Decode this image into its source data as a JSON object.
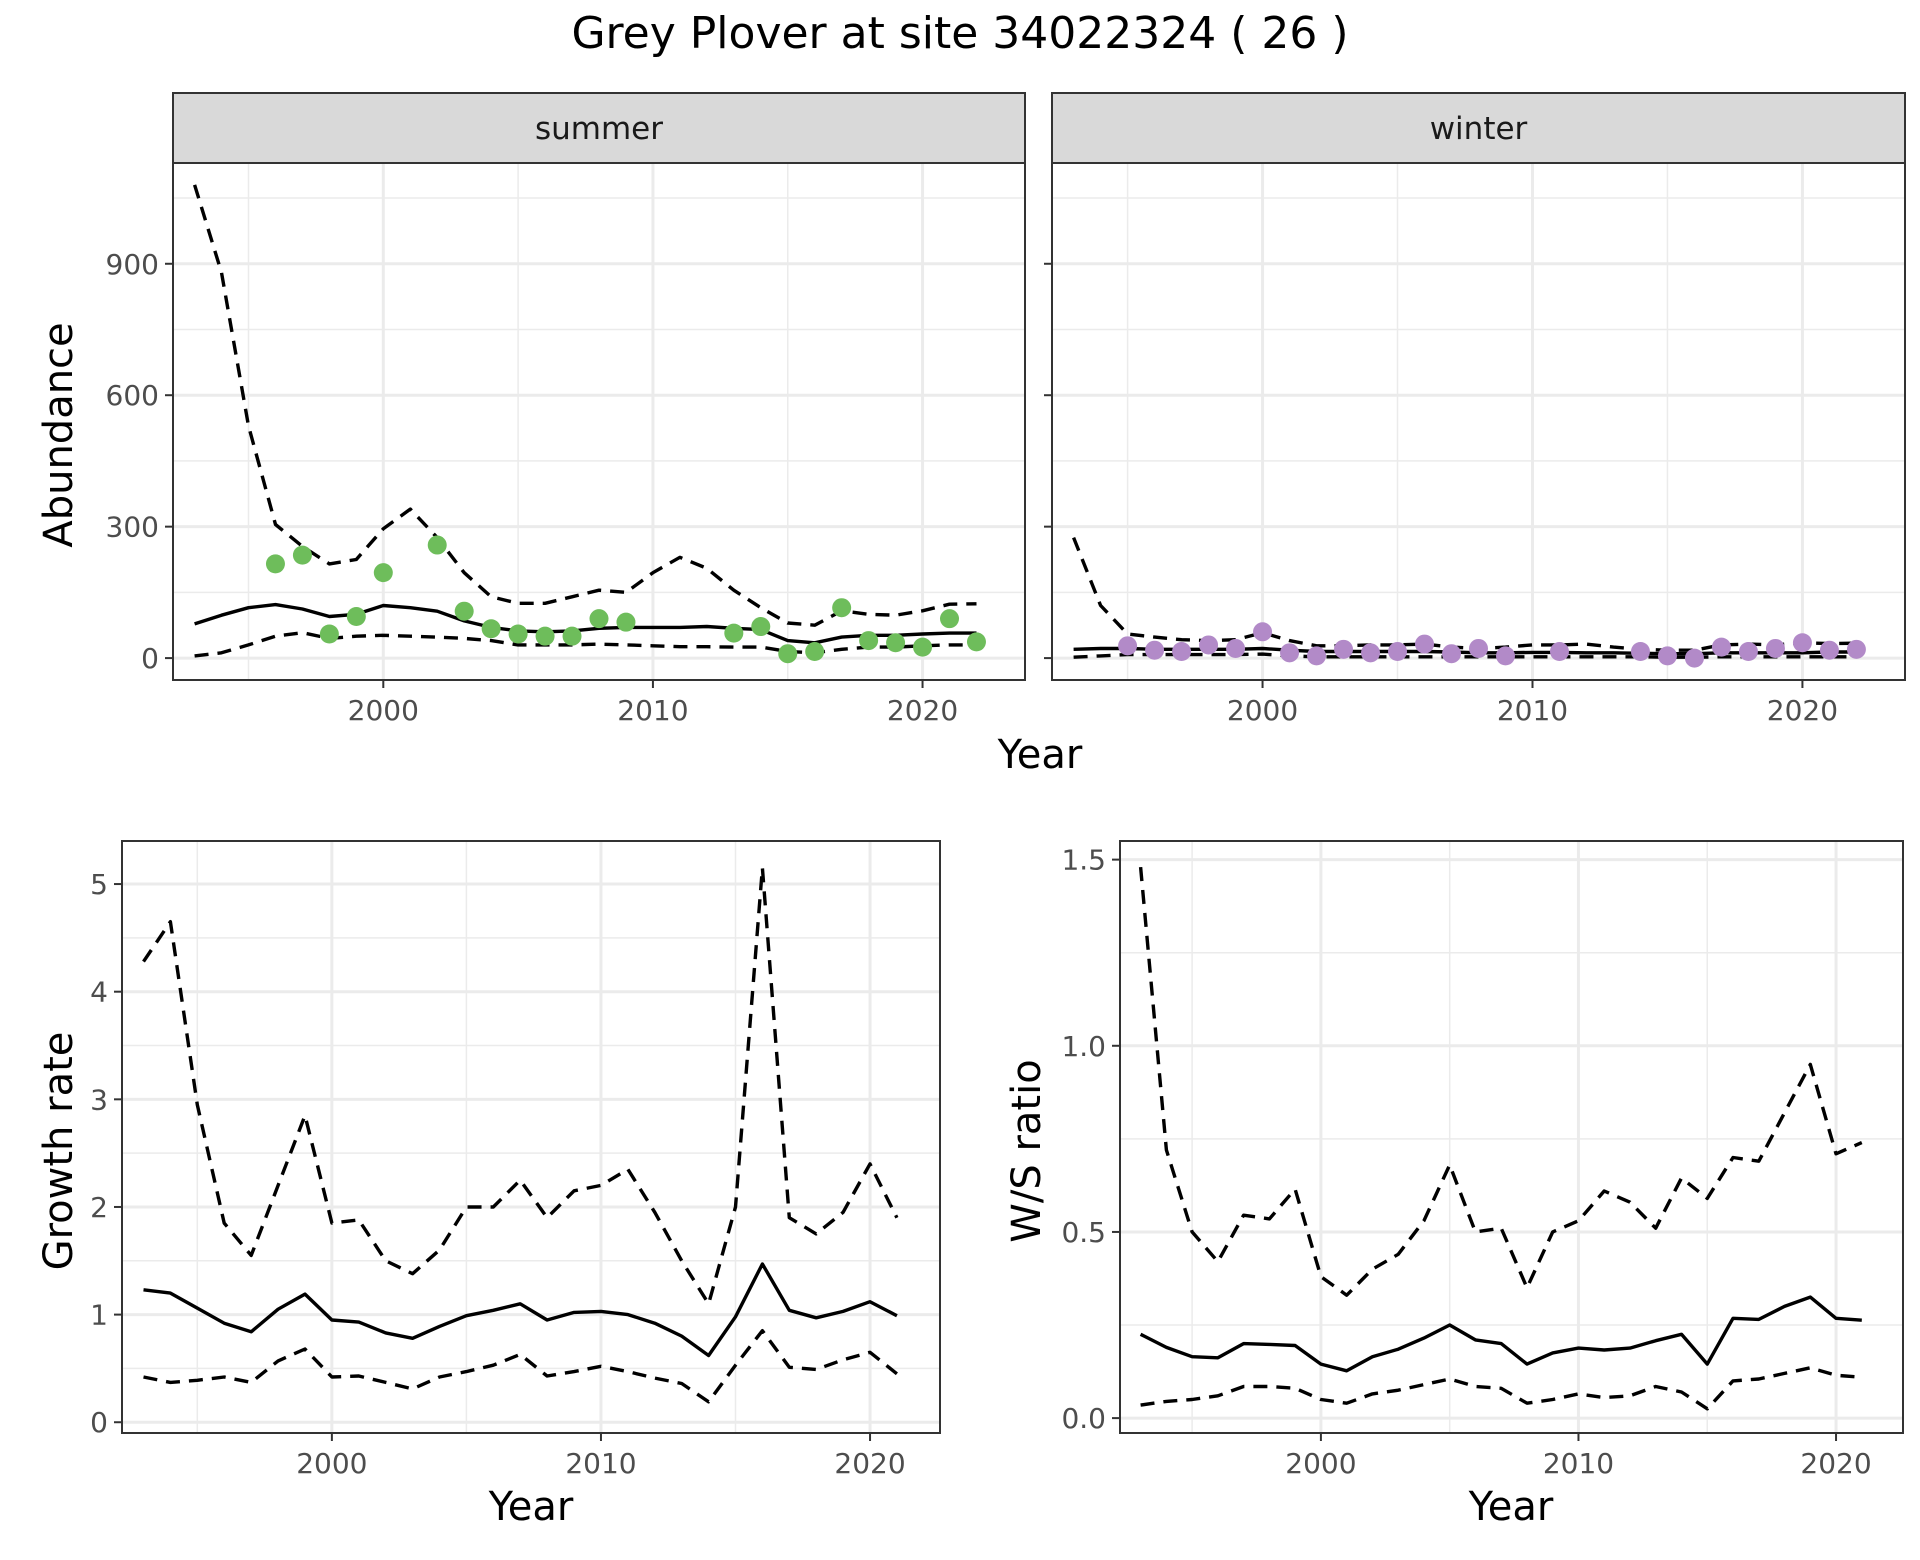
{
  "title": "Grey Plover at site 34022324 ( 26 )",
  "colors": {
    "summer_points": "#6ebd5b",
    "winter_points": "#b28ac8",
    "line": "#000000"
  },
  "chart_data": [
    {
      "type": "line",
      "facet": "summer",
      "strip_label": "summer",
      "xlabel": "",
      "ylabel": "Abundance",
      "xlim": [
        1992.2,
        2023.8
      ],
      "ylim": [
        -50,
        1130
      ],
      "xticks": [
        2000,
        2010,
        2020
      ],
      "yticks": [
        0,
        300,
        600,
        900
      ],
      "series": [
        {
          "name": "fit",
          "style": "solid",
          "x": [
            1993,
            1994,
            1995,
            1996,
            1997,
            1998,
            1999,
            2000,
            2001,
            2002,
            2003,
            2004,
            2005,
            2006,
            2007,
            2008,
            2009,
            2010,
            2011,
            2012,
            2013,
            2014,
            2015,
            2016,
            2017,
            2018,
            2019,
            2020,
            2021,
            2022
          ],
          "y": [
            78,
            98,
            115,
            122,
            112,
            95,
            100,
            120,
            115,
            107,
            85,
            70,
            62,
            60,
            62,
            68,
            70,
            70,
            70,
            72,
            68,
            65,
            40,
            35,
            48,
            52,
            52,
            55,
            57,
            57
          ]
        },
        {
          "name": "upper",
          "style": "dashed",
          "x": [
            1993,
            1994,
            1995,
            1996,
            1997,
            1998,
            1999,
            2000,
            2001,
            2002,
            2003,
            2004,
            2005,
            2006,
            2007,
            2008,
            2009,
            2010,
            2011,
            2012,
            2013,
            2014,
            2015,
            2016,
            2017,
            2018,
            2019,
            2020,
            2021,
            2022
          ],
          "y": [
            1080,
            880,
            530,
            305,
            255,
            215,
            225,
            295,
            340,
            275,
            195,
            140,
            125,
            125,
            140,
            155,
            150,
            195,
            230,
            205,
            155,
            115,
            80,
            75,
            108,
            100,
            98,
            108,
            123,
            124
          ]
        },
        {
          "name": "lower",
          "style": "dashed",
          "x": [
            1993,
            1994,
            1995,
            1996,
            1997,
            1998,
            1999,
            2000,
            2001,
            2002,
            2003,
            2004,
            2005,
            2006,
            2007,
            2008,
            2009,
            2010,
            2011,
            2012,
            2013,
            2014,
            2015,
            2016,
            2017,
            2018,
            2019,
            2020,
            2021,
            2022
          ],
          "y": [
            5,
            12,
            30,
            50,
            58,
            45,
            50,
            52,
            50,
            48,
            45,
            40,
            30,
            30,
            30,
            32,
            30,
            28,
            26,
            26,
            25,
            25,
            15,
            12,
            20,
            25,
            25,
            28,
            30,
            30
          ]
        },
        {
          "name": "observed",
          "style": "points",
          "x": [
            1996,
            1997,
            1998,
            1999,
            2000,
            2002,
            2003,
            2004,
            2005,
            2006,
            2007,
            2008,
            2009,
            2013,
            2014,
            2015,
            2016,
            2017,
            2018,
            2019,
            2020,
            2021,
            2022
          ],
          "y": [
            215,
            235,
            55,
            95,
            195,
            258,
            107,
            67,
            55,
            50,
            50,
            90,
            82,
            57,
            72,
            10,
            15,
            115,
            40,
            35,
            25,
            90,
            37
          ]
        }
      ]
    },
    {
      "type": "line",
      "facet": "winter",
      "strip_label": "winter",
      "xlabel": "",
      "ylabel": "",
      "xlim": [
        1992.2,
        2023.8
      ],
      "ylim": [
        -50,
        1130
      ],
      "xticks": [
        2000,
        2010,
        2020
      ],
      "yticks": [
        0,
        300,
        600,
        900
      ],
      "series": [
        {
          "name": "fit",
          "style": "solid",
          "x": [
            1993,
            1994,
            1995,
            1996,
            1997,
            1998,
            1999,
            2000,
            2001,
            2002,
            2003,
            2004,
            2005,
            2006,
            2007,
            2008,
            2009,
            2010,
            2011,
            2012,
            2013,
            2014,
            2015,
            2016,
            2017,
            2018,
            2019,
            2020,
            2021,
            2022
          ],
          "y": [
            20,
            22,
            22,
            20,
            20,
            20,
            20,
            22,
            18,
            15,
            15,
            15,
            15,
            15,
            14,
            12,
            12,
            13,
            13,
            12,
            12,
            11,
            10,
            10,
            12,
            12,
            12,
            12,
            14,
            14
          ]
        },
        {
          "name": "upper",
          "style": "dashed",
          "x": [
            1993,
            1994,
            1995,
            1996,
            1997,
            1998,
            1999,
            2000,
            2001,
            2002,
            2003,
            2004,
            2005,
            2006,
            2007,
            2008,
            2009,
            2010,
            2011,
            2012,
            2013,
            2014,
            2015,
            2016,
            2017,
            2018,
            2019,
            2020,
            2021,
            2022
          ],
          "y": [
            275,
            120,
            55,
            48,
            42,
            40,
            42,
            58,
            40,
            28,
            28,
            30,
            30,
            32,
            25,
            22,
            25,
            30,
            30,
            32,
            25,
            20,
            18,
            18,
            30,
            32,
            30,
            35,
            33,
            34
          ]
        },
        {
          "name": "lower",
          "style": "dashed",
          "x": [
            1993,
            1994,
            1995,
            1996,
            1997,
            1998,
            1999,
            2000,
            2001,
            2002,
            2003,
            2004,
            2005,
            2006,
            2007,
            2008,
            2009,
            2010,
            2011,
            2012,
            2013,
            2014,
            2015,
            2016,
            2017,
            2018,
            2019,
            2020,
            2021,
            2022
          ],
          "y": [
            2,
            5,
            8,
            8,
            8,
            8,
            8,
            9,
            5,
            3,
            3,
            3,
            3,
            3,
            3,
            3,
            3,
            3,
            3,
            3,
            3,
            3,
            2,
            2,
            3,
            3,
            3,
            3,
            3,
            3
          ]
        },
        {
          "name": "observed",
          "style": "points",
          "x": [
            1995,
            1996,
            1997,
            1998,
            1999,
            2000,
            2001,
            2002,
            2003,
            2004,
            2005,
            2006,
            2007,
            2008,
            2009,
            2011,
            2014,
            2015,
            2016,
            2017,
            2018,
            2019,
            2020,
            2021,
            2022
          ],
          "y": [
            28,
            18,
            15,
            30,
            22,
            60,
            12,
            5,
            20,
            12,
            15,
            32,
            10,
            22,
            5,
            15,
            15,
            5,
            0,
            25,
            15,
            22,
            35,
            18,
            20
          ]
        }
      ]
    },
    {
      "type": "line",
      "facet": "growth",
      "xlabel": "Year",
      "ylabel": "Growth rate",
      "xlim": [
        1992.2,
        2022.6
      ],
      "ylim": [
        -0.1,
        5.4
      ],
      "xticks": [
        2000,
        2010,
        2020
      ],
      "yticks": [
        0,
        1,
        2,
        3,
        4,
        5
      ],
      "series": [
        {
          "name": "fit",
          "style": "solid",
          "x": [
            1993,
            1994,
            1995,
            1996,
            1997,
            1998,
            1999,
            2000,
            2001,
            2002,
            2003,
            2004,
            2005,
            2006,
            2007,
            2008,
            2009,
            2010,
            2011,
            2012,
            2013,
            2014,
            2015,
            2016,
            2017,
            2018,
            2019,
            2020,
            2021
          ],
          "y": [
            1.23,
            1.2,
            1.06,
            0.92,
            0.84,
            1.05,
            1.19,
            0.95,
            0.93,
            0.83,
            0.78,
            0.89,
            0.99,
            1.04,
            1.1,
            0.95,
            1.02,
            1.03,
            1.0,
            0.92,
            0.8,
            0.62,
            0.98,
            1.47,
            1.04,
            0.97,
            1.03,
            1.12,
            0.99
          ]
        },
        {
          "name": "upper",
          "style": "dashed",
          "x": [
            1993,
            1994,
            1995,
            1996,
            1997,
            1998,
            1999,
            2000,
            2001,
            2002,
            2003,
            2004,
            2005,
            2006,
            2007,
            2008,
            2009,
            2010,
            2011,
            2012,
            2013,
            2014,
            2015,
            2016,
            2017,
            2018,
            2019,
            2020,
            2021
          ],
          "y": [
            4.28,
            4.65,
            2.95,
            1.85,
            1.55,
            2.2,
            2.85,
            1.85,
            1.88,
            1.5,
            1.38,
            1.6,
            2.0,
            2.0,
            2.25,
            1.9,
            2.15,
            2.2,
            2.35,
            1.95,
            1.5,
            1.1,
            2.0,
            5.15,
            1.9,
            1.75,
            1.95,
            2.4,
            1.9
          ]
        },
        {
          "name": "lower",
          "style": "dashed",
          "x": [
            1993,
            1994,
            1995,
            1996,
            1997,
            1998,
            1999,
            2000,
            2001,
            2002,
            2003,
            2004,
            2005,
            2006,
            2007,
            2008,
            2009,
            2010,
            2011,
            2012,
            2013,
            2014,
            2015,
            2016,
            2017,
            2018,
            2019,
            2020,
            2021
          ],
          "y": [
            0.42,
            0.37,
            0.39,
            0.42,
            0.37,
            0.57,
            0.68,
            0.42,
            0.43,
            0.37,
            0.31,
            0.42,
            0.47,
            0.53,
            0.63,
            0.43,
            0.47,
            0.52,
            0.47,
            0.41,
            0.36,
            0.19,
            0.53,
            0.85,
            0.51,
            0.49,
            0.58,
            0.65,
            0.45
          ]
        }
      ]
    },
    {
      "type": "line",
      "facet": "ws_ratio",
      "xlabel": "Year",
      "ylabel": "W/S ratio",
      "xlim": [
        1992.2,
        2022.6
      ],
      "ylim": [
        -0.04,
        1.55
      ],
      "xticks": [
        2000,
        2010,
        2020
      ],
      "yticks": [
        0.0,
        0.5,
        1.0,
        1.5
      ],
      "ytick_labels": [
        "0.0",
        "0.5",
        "1.0",
        "1.5"
      ],
      "series": [
        {
          "name": "fit",
          "style": "solid",
          "x": [
            1993,
            1994,
            1995,
            1996,
            1997,
            1998,
            1999,
            2000,
            2001,
            2002,
            2003,
            2004,
            2005,
            2006,
            2007,
            2008,
            2009,
            2010,
            2011,
            2012,
            2013,
            2014,
            2015,
            2016,
            2017,
            2018,
            2019,
            2020,
            2021
          ],
          "y": [
            0.225,
            0.19,
            0.165,
            0.162,
            0.2,
            0.198,
            0.195,
            0.145,
            0.127,
            0.165,
            0.185,
            0.215,
            0.25,
            0.21,
            0.2,
            0.145,
            0.175,
            0.188,
            0.183,
            0.188,
            0.208,
            0.225,
            0.145,
            0.268,
            0.265,
            0.3,
            0.325,
            0.268,
            0.263
          ]
        },
        {
          "name": "upper",
          "style": "dashed",
          "x": [
            1993,
            1994,
            1995,
            1996,
            1997,
            1998,
            1999,
            2000,
            2001,
            2002,
            2003,
            2004,
            2005,
            2006,
            2007,
            2008,
            2009,
            2010,
            2011,
            2012,
            2013,
            2014,
            2015,
            2016,
            2017,
            2018,
            2019,
            2020,
            2021
          ],
          "y": [
            1.48,
            0.72,
            0.5,
            0.42,
            0.545,
            0.535,
            0.615,
            0.38,
            0.33,
            0.4,
            0.44,
            0.53,
            0.68,
            0.5,
            0.51,
            0.35,
            0.5,
            0.53,
            0.61,
            0.58,
            0.51,
            0.645,
            0.59,
            0.7,
            0.69,
            0.82,
            0.95,
            0.71,
            0.74
          ]
        },
        {
          "name": "lower",
          "style": "dashed",
          "x": [
            1993,
            1994,
            1995,
            1996,
            1997,
            1998,
            1999,
            2000,
            2001,
            2002,
            2003,
            2004,
            2005,
            2006,
            2007,
            2008,
            2009,
            2010,
            2011,
            2012,
            2013,
            2014,
            2015,
            2016,
            2017,
            2018,
            2019,
            2020,
            2021
          ],
          "y": [
            0.035,
            0.045,
            0.05,
            0.06,
            0.085,
            0.085,
            0.08,
            0.05,
            0.04,
            0.065,
            0.075,
            0.09,
            0.105,
            0.085,
            0.08,
            0.04,
            0.05,
            0.065,
            0.055,
            0.06,
            0.085,
            0.07,
            0.025,
            0.1,
            0.105,
            0.12,
            0.135,
            0.115,
            0.11
          ]
        }
      ]
    }
  ]
}
